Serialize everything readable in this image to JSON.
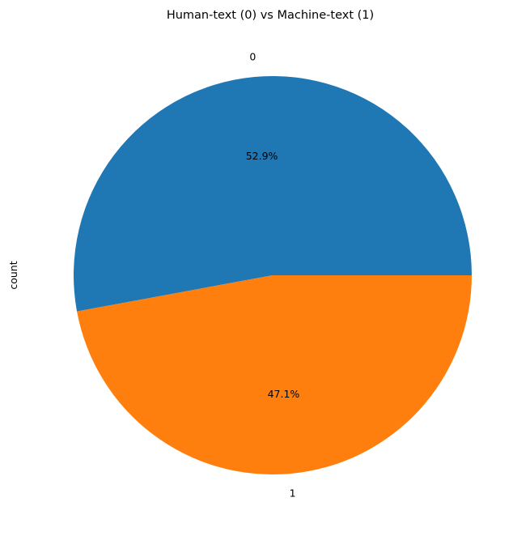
{
  "chart_data": {
    "type": "pie",
    "title": "Human-text (0) vs Machine-text (1)",
    "ylabel": "count",
    "categories": [
      "0",
      "1"
    ],
    "values": [
      52.9,
      47.1
    ],
    "pct_labels": [
      "52.9%",
      "47.1%"
    ],
    "colors": [
      "#1f77b4",
      "#ff7f0e"
    ],
    "start_angle_deg": 0,
    "direction": "counterclockwise"
  }
}
